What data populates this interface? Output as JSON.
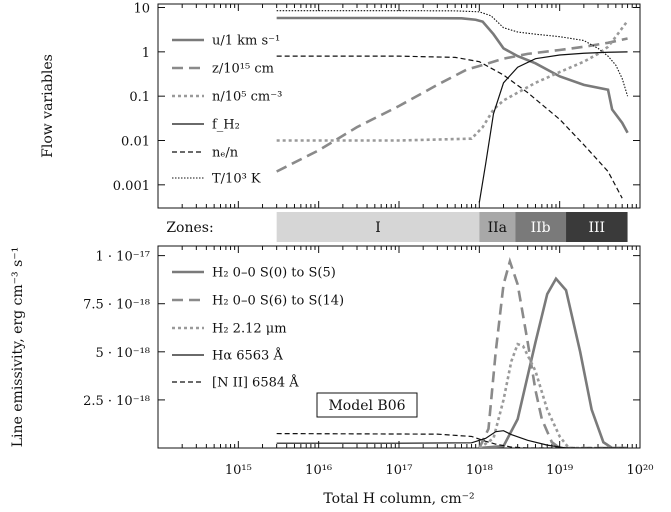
{
  "chart_data": [
    {
      "id": "flow",
      "type": "line",
      "ylabel": "Flow variables",
      "xscale": "log",
      "yscale": "log",
      "xlim": [
        100000000000000.0,
        1e+20
      ],
      "ylim": [
        0.0003,
        12
      ],
      "yticks": [
        {
          "v": 10,
          "label": "10"
        },
        {
          "v": 1,
          "label": "1"
        },
        {
          "v": 0.1,
          "label": "0.1"
        },
        {
          "v": 0.01,
          "label": "0.01"
        },
        {
          "v": 0.001,
          "label": "0.001"
        }
      ],
      "legend_position": "left",
      "series": [
        {
          "name": "u/1 km s⁻¹",
          "style": "solid-thick",
          "color": "#7a7a7a",
          "points": [
            [
              3000000000000000.0,
              5.8
            ],
            [
              1e+17,
              5.8
            ],
            [
              6e+17,
              5.7
            ],
            [
              9e+17,
              5.3
            ],
            [
              1.1e+18,
              4.8
            ],
            [
              1.5e+18,
              2.5
            ],
            [
              2e+18,
              1.2
            ],
            [
              3e+18,
              0.8
            ],
            [
              5e+18,
              0.55
            ],
            [
              1e+19,
              0.28
            ],
            [
              2e+19,
              0.18
            ],
            [
              4e+19,
              0.14
            ],
            [
              4.5e+19,
              0.05
            ],
            [
              6e+19,
              0.025
            ],
            [
              7e+19,
              0.015
            ]
          ]
        },
        {
          "name": "z/10¹⁵ cm",
          "style": "dashed-thick",
          "color": "#8a8a8a",
          "points": [
            [
              3000000000000000.0,
              0.002
            ],
            [
              1e+16,
              0.006
            ],
            [
              3e+16,
              0.02
            ],
            [
              1e+17,
              0.06
            ],
            [
              3e+17,
              0.18
            ],
            [
              7e+17,
              0.4
            ],
            [
              1e+18,
              0.48
            ],
            [
              2e+18,
              0.7
            ],
            [
              4e+18,
              0.9
            ],
            [
              1e+19,
              1.1
            ],
            [
              2e+19,
              1.3
            ],
            [
              4e+19,
              1.6
            ],
            [
              7e+19,
              2.0
            ]
          ]
        },
        {
          "name": "n/10⁵ cm⁻³",
          "style": "dotted-thick",
          "color": "#9a9a9a",
          "points": [
            [
              3000000000000000.0,
              0.01
            ],
            [
              1e+17,
              0.01
            ],
            [
              8e+17,
              0.011
            ],
            [
              1.1e+18,
              0.02
            ],
            [
              1.5e+18,
              0.05
            ],
            [
              2e+18,
              0.08
            ],
            [
              3e+18,
              0.12
            ],
            [
              5e+18,
              0.2
            ],
            [
              1e+19,
              0.35
            ],
            [
              2e+19,
              0.6
            ],
            [
              3e+19,
              0.9
            ],
            [
              4e+19,
              1.3
            ],
            [
              5e+19,
              2.2
            ],
            [
              7e+19,
              5.0
            ]
          ]
        },
        {
          "name": "f_H₂",
          "style": "solid-thin",
          "color": "#111111",
          "points": [
            [
              1e+18,
              0.0004
            ],
            [
              1.2e+18,
              0.003
            ],
            [
              1.5e+18,
              0.04
            ],
            [
              2e+18,
              0.2
            ],
            [
              3e+18,
              0.45
            ],
            [
              5e+18,
              0.7
            ],
            [
              1e+19,
              0.85
            ],
            [
              2e+19,
              0.93
            ],
            [
              4e+19,
              0.98
            ],
            [
              7e+19,
              1.0
            ]
          ]
        },
        {
          "name": "nₑ/n",
          "style": "dashed-thin",
          "color": "#111111",
          "points": [
            [
              3000000000000000.0,
              0.8
            ],
            [
              1e+17,
              0.8
            ],
            [
              5e+17,
              0.75
            ],
            [
              1e+18,
              0.6
            ],
            [
              2e+18,
              0.3
            ],
            [
              4e+18,
              0.12
            ],
            [
              1e+19,
              0.03
            ],
            [
              2e+19,
              0.008
            ],
            [
              4e+19,
              0.002
            ],
            [
              6e+19,
              0.0005
            ]
          ]
        },
        {
          "name": "T/10³ K",
          "style": "dotted-thin",
          "color": "#111111",
          "points": [
            [
              3000000000000000.0,
              8.5
            ],
            [
              1e+17,
              8.5
            ],
            [
              5e+17,
              8.4
            ],
            [
              1e+18,
              8.0
            ],
            [
              1.4e+18,
              6.5
            ],
            [
              2e+18,
              3.5
            ],
            [
              3e+18,
              2.8
            ],
            [
              5e+18,
              2.5
            ],
            [
              1e+19,
              2.2
            ],
            [
              2e+19,
              1.8
            ],
            [
              3e+19,
              1.2
            ],
            [
              4e+19,
              0.8
            ],
            [
              5e+19,
              0.5
            ],
            [
              6e+19,
              0.25
            ],
            [
              7e+19,
              0.1
            ]
          ]
        }
      ]
    },
    {
      "id": "emiss",
      "type": "line",
      "xlabel": "Total H column, cm⁻²",
      "ylabel": "Line emissivity, erg cm⁻³ s⁻¹",
      "xscale": "log",
      "xlim": [
        100000000000000.0,
        1e+20
      ],
      "ylim": [
        0,
        1.05e-17
      ],
      "xticks": [
        {
          "v": 1000000000000000.0,
          "label": "10¹⁵"
        },
        {
          "v": 1e+16,
          "label": "10¹⁶"
        },
        {
          "v": 1e+17,
          "label": "10¹⁷"
        },
        {
          "v": 1e+18,
          "label": "10¹⁸"
        },
        {
          "v": 1e+19,
          "label": "10¹⁹"
        },
        {
          "v": 1e+20,
          "label": "10²⁰"
        }
      ],
      "yticks": [
        {
          "v": 2.5e-18,
          "label": "2.5 · 10⁻¹⁸"
        },
        {
          "v": 5e-18,
          "label": "5 · 10⁻¹⁸"
        },
        {
          "v": 7.5e-18,
          "label": "7.5 · 10⁻¹⁸"
        },
        {
          "v": 1e-17,
          "label": "1 · 10⁻¹⁷"
        }
      ],
      "annotation": "Model B06",
      "legend_position": "upper-left",
      "series": [
        {
          "name": "H₂ 0–0 S(0) to S(5)",
          "style": "solid-thick",
          "color": "#7a7a7a",
          "points": [
            [
              1e+18,
              0
            ],
            [
              2e+18,
              1e-19
            ],
            [
              3e+18,
              1.5e-18
            ],
            [
              5e+18,
              5.5e-18
            ],
            [
              7e+18,
              8e-18
            ],
            [
              9e+18,
              8.8e-18
            ],
            [
              1.2e+19,
              8.2e-18
            ],
            [
              1.8e+19,
              5e-18
            ],
            [
              2.5e+19,
              2e-18
            ],
            [
              3.5e+19,
              3e-19
            ],
            [
              4.5e+19,
              0
            ],
            [
              7e+19,
              0
            ]
          ]
        },
        {
          "name": "H₂ 0–0 S(6) to S(14)",
          "style": "dashed-thick",
          "color": "#8a8a8a",
          "points": [
            [
              1e+18,
              0
            ],
            [
              1.3e+18,
              1e-18
            ],
            [
              1.6e+18,
              5e-18
            ],
            [
              2e+18,
              8.5e-18
            ],
            [
              2.4e+18,
              9.7e-18
            ],
            [
              3e+18,
              8.5e-18
            ],
            [
              4e+18,
              5.5e-18
            ],
            [
              5e+18,
              3e-18
            ],
            [
              6e+18,
              1.5e-18
            ],
            [
              8e+18,
              3e-19
            ],
            [
              1e+19,
              0
            ],
            [
              7e+19,
              0
            ]
          ]
        },
        {
          "name": "H₂ 2.12 μm",
          "style": "dotted-thick",
          "color": "#9a9a9a",
          "points": [
            [
              1e+18,
              0
            ],
            [
              1.5e+18,
              5e-19
            ],
            [
              2e+18,
              2.5e-18
            ],
            [
              2.5e+18,
              4.5e-18
            ],
            [
              3e+18,
              5.4e-18
            ],
            [
              3.5e+18,
              5.3e-18
            ],
            [
              5e+18,
              4e-18
            ],
            [
              7e+18,
              2e-18
            ],
            [
              1e+19,
              6e-19
            ],
            [
              1.3e+19,
              0
            ],
            [
              7e+19,
              0
            ]
          ]
        },
        {
          "name": "Hα 6563 Å",
          "style": "solid-thin",
          "color": "#111111",
          "points": [
            [
              3000000000000000.0,
              2.5e-19
            ],
            [
              1e+17,
              2.5e-19
            ],
            [
              8e+17,
              2.7e-19
            ],
            [
              1.2e+18,
              5e-19
            ],
            [
              1.6e+18,
              8.5e-19
            ],
            [
              2e+18,
              9e-19
            ],
            [
              2.5e+18,
              7e-19
            ],
            [
              4e+18,
              4e-19
            ],
            [
              7e+18,
              1.5e-19
            ],
            [
              1.2e+19,
              0
            ],
            [
              7e+19,
              0
            ]
          ]
        },
        {
          "name": "[N II] 6584 Å",
          "style": "dashed-thin",
          "color": "#111111",
          "points": [
            [
              3000000000000000.0,
              7.5e-19
            ],
            [
              3e+17,
              7.2e-19
            ],
            [
              8e+17,
              6e-19
            ],
            [
              1.2e+18,
              3.5e-19
            ],
            [
              1.6e+18,
              2e-19
            ],
            [
              2.5e+18,
              5e-20
            ],
            [
              4e+18,
              0
            ],
            [
              7e+19,
              0
            ]
          ]
        }
      ]
    }
  ],
  "zones": {
    "label": "Zones:",
    "items": [
      {
        "name": "I",
        "from": 3000000000000000.0,
        "to": 1e+18,
        "color": "#d6d6d6",
        "text_color": "#111111"
      },
      {
        "name": "IIa",
        "from": 1e+18,
        "to": 2.8e+18,
        "color": "#a8a8a8",
        "text_color": "#111111"
      },
      {
        "name": "IIb",
        "from": 2.8e+18,
        "to": 1.2e+19,
        "color": "#7a7a7a",
        "text_color": "#ffffff"
      },
      {
        "name": "III",
        "from": 1.2e+19,
        "to": 7e+19,
        "color": "#3a3a3a",
        "text_color": "#ffffff"
      }
    ]
  }
}
